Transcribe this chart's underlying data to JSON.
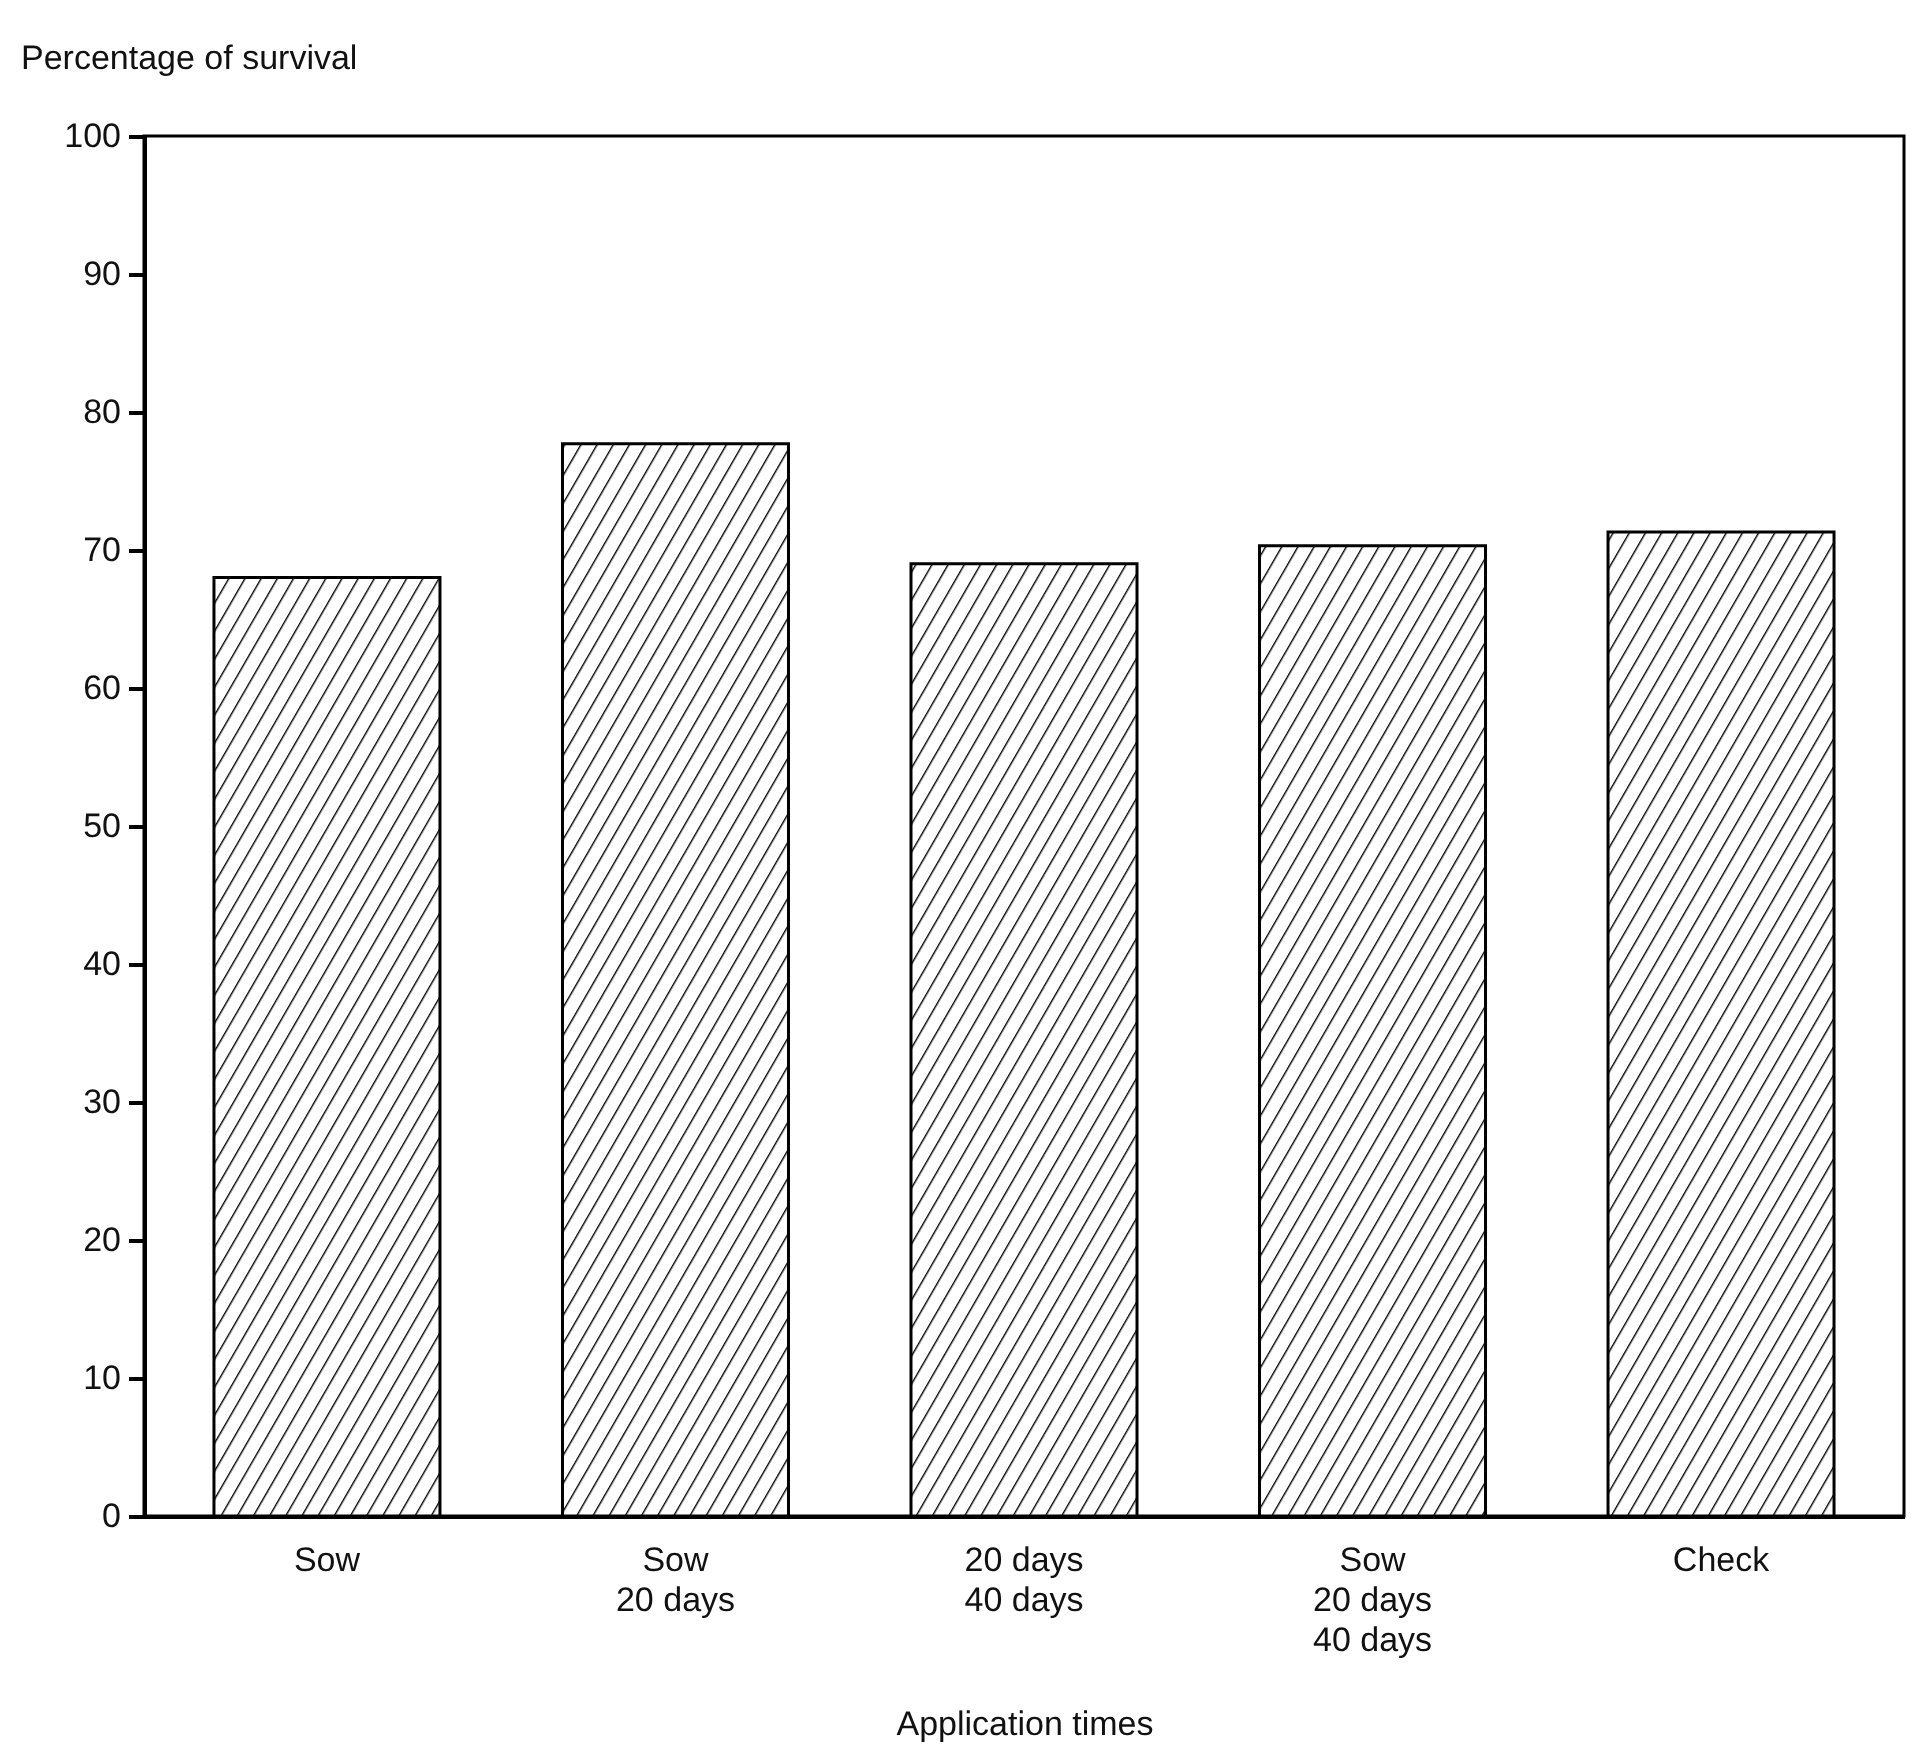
{
  "chart_data": {
    "type": "bar",
    "categories": [
      "Sow",
      "Sow\n20 days",
      "20 days\n40 days",
      "Sow\n20 days\n40 days",
      "Check"
    ],
    "values": [
      68,
      77.7,
      69,
      70.3,
      71.3
    ],
    "color": "#000000",
    "xlabel": "Application times",
    "ylabel": "Percentage of survival",
    "ylim": [
      0,
      100
    ],
    "yticks": [
      0,
      10,
      20,
      30,
      40,
      50,
      60,
      70,
      80,
      90,
      100
    ],
    "grid": false
  }
}
